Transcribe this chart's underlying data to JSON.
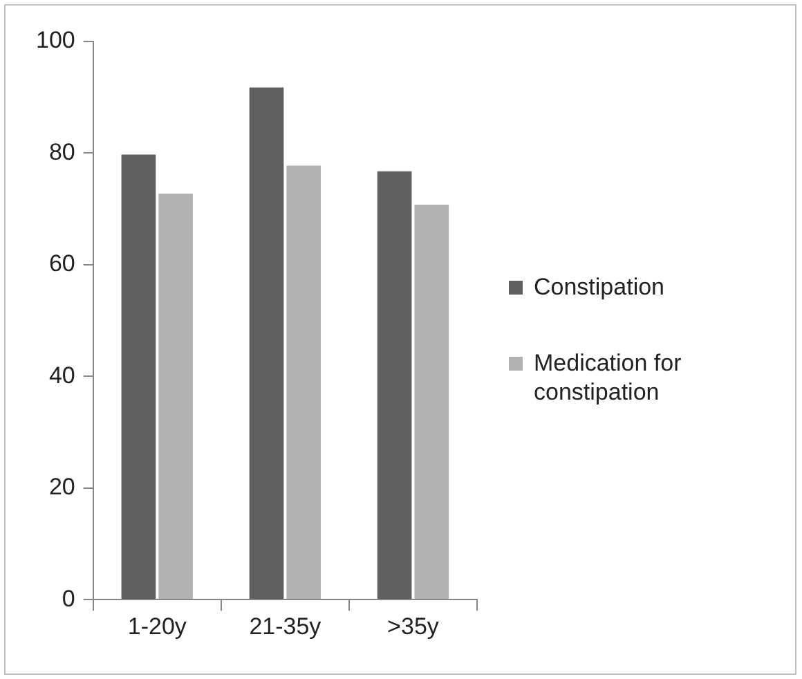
{
  "chart_data": {
    "type": "bar",
    "categories": [
      "1-20y",
      "21-35y",
      ">35y"
    ],
    "series": [
      {
        "name": "Constipation",
        "color": "#606060",
        "values": [
          80,
          92,
          77
        ]
      },
      {
        "name": "Medication for constipation",
        "color": "#b2b2b2",
        "values": [
          73,
          78,
          71
        ]
      }
    ],
    "ylim": [
      0,
      100
    ],
    "yticks": [
      0,
      20,
      40,
      60,
      80,
      100
    ],
    "grid": false,
    "legend": "right"
  }
}
